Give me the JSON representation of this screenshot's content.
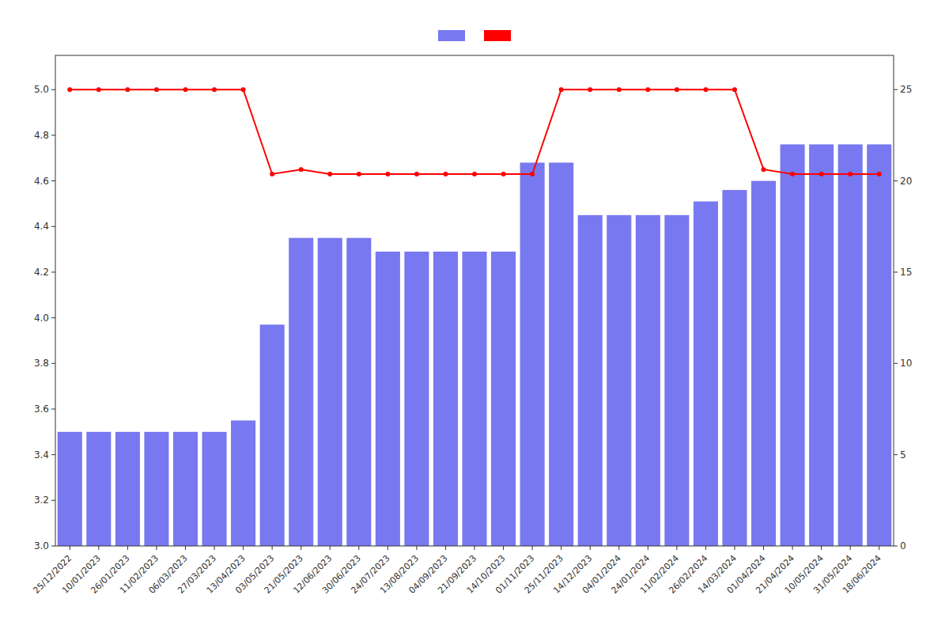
{
  "chart_data": {
    "type": "bar",
    "categories": [
      "25/12/2022",
      "10/01/2023",
      "26/01/2023",
      "11/02/2023",
      "06/03/2023",
      "27/03/2023",
      "13/04/2023",
      "03/05/2023",
      "21/05/2023",
      "12/06/2023",
      "30/06/2023",
      "24/07/2023",
      "13/08/2023",
      "04/09/2023",
      "21/09/2023",
      "14/10/2023",
      "01/11/2023",
      "25/11/2023",
      "14/12/2023",
      "04/01/2024",
      "24/01/2024",
      "11/02/2024",
      "26/02/2024",
      "14/03/2024",
      "01/04/2024",
      "21/04/2024",
      "10/05/2024",
      "31/05/2024",
      "18/06/2024"
    ],
    "series": [
      {
        "type": "bar",
        "color": "#7878f0",
        "values": [
          3.5,
          3.5,
          3.5,
          3.5,
          3.5,
          3.5,
          3.55,
          3.97,
          4.35,
          4.35,
          4.35,
          4.29,
          4.29,
          4.29,
          4.29,
          4.29,
          4.68,
          4.68,
          4.45,
          4.45,
          4.45,
          4.45,
          4.51,
          4.56,
          4.6,
          4.76,
          4.76,
          4.76,
          4.76
        ]
      },
      {
        "type": "line",
        "color": "#ff0000",
        "marker": "circle",
        "values": [
          5.0,
          5.0,
          5.0,
          5.0,
          5.0,
          5.0,
          5.0,
          4.63,
          4.65,
          4.63,
          4.63,
          4.63,
          4.63,
          4.63,
          4.63,
          4.63,
          4.63,
          5.0,
          5.0,
          5.0,
          5.0,
          5.0,
          5.0,
          5.0,
          4.65,
          4.63,
          4.63,
          4.63,
          4.63
        ]
      }
    ],
    "ylim": [
      3.0,
      5.15
    ],
    "yticks": [
      {
        "value": 3.0,
        "label": "3.0"
      },
      3.2,
      3.4,
      3.6,
      3.8,
      {
        "value": 4.0,
        "label": "4.0"
      },
      4.2,
      4.4,
      4.6,
      4.8,
      {
        "value": 5.0,
        "label": "5.0"
      }
    ],
    "y2lim": [
      0,
      26.875
    ],
    "y2ticks": [
      0,
      5,
      10,
      15,
      20,
      25
    ],
    "grid": false,
    "legend": "top"
  }
}
